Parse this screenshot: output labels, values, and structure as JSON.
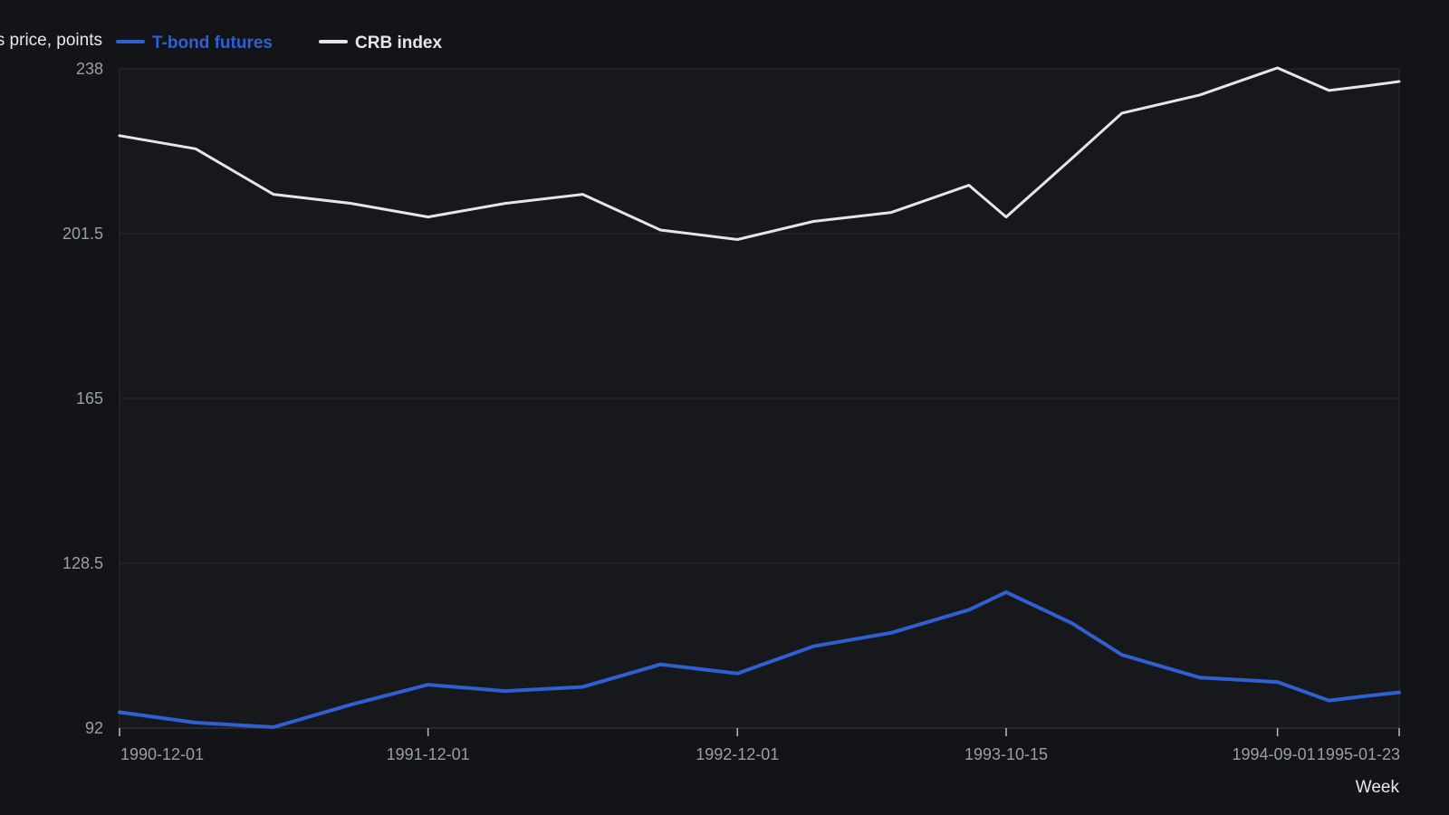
{
  "chart_data": {
    "type": "line",
    "ylabel": "Futures price, points",
    "xlabel": "Week",
    "ylim": [
      92,
      238
    ],
    "y_ticks": [
      "92",
      "128.5",
      "165",
      "201.5",
      "238"
    ],
    "x_ticks": [
      "1990-12-01",
      "1991-12-01",
      "1992-12-01",
      "1993-10-15",
      "1994-09-01",
      "1995-01-23"
    ],
    "grid": true,
    "legend_position": "top-left",
    "x": [
      "1990-12-01",
      "1991-03-01",
      "1991-06-01",
      "1991-09-01",
      "1991-12-01",
      "1992-03-01",
      "1992-06-01",
      "1992-09-01",
      "1992-12-01",
      "1993-03-01",
      "1993-06-01",
      "1993-09-01",
      "1993-10-15",
      "1994-01-01",
      "1994-03-01",
      "1994-06-01",
      "1994-09-01",
      "1994-11-01",
      "1994-12-15",
      "1995-01-23"
    ],
    "series": [
      {
        "name": "T-bond futures",
        "color": "#2f5fd0",
        "values": [
          95.5,
          93.2,
          92.2,
          97.2,
          101.6,
          100.2,
          101.1,
          106.1,
          104.1,
          110.1,
          113.1,
          118.2,
          122.1,
          115.2,
          108.2,
          103.2,
          102.2,
          98.1,
          99.1,
          99.9
        ]
      },
      {
        "name": "CRB index",
        "color": "#e6e6e6",
        "values": [
          223.2,
          220.3,
          210.2,
          208.2,
          205.2,
          208.2,
          210.2,
          202.3,
          200.2,
          204.2,
          206.2,
          212.2,
          205.2,
          218.2,
          228.2,
          232.2,
          238.2,
          233.2,
          234.2,
          235.2
        ]
      }
    ]
  }
}
